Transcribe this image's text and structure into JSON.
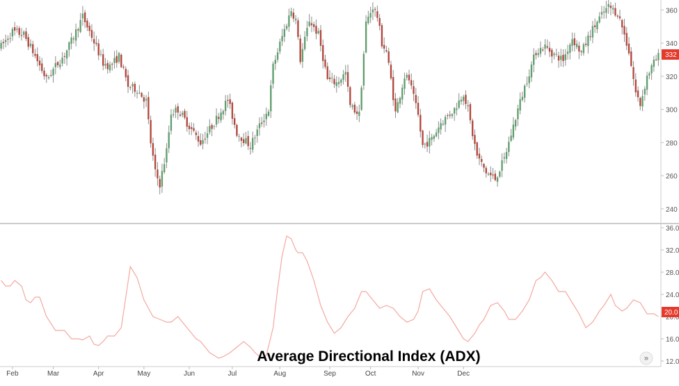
{
  "colors": {
    "up": "#5e9e6c",
    "down": "#b2453a",
    "adx": "#f4a8a0",
    "tag": "#e5392b",
    "panel_divider": "#bbbbbb"
  },
  "scroll_glyph": "»",
  "chart_data": [
    {
      "type": "candlestick",
      "title": "",
      "ylim": [
        232,
        366
      ],
      "yticks": [
        "240",
        "260",
        "280",
        "300",
        "320",
        "340",
        "360"
      ],
      "last_price_label": "332",
      "x_months": [
        "Feb",
        "Mar",
        "Apr",
        "May",
        "Jun",
        "Jul",
        "Aug",
        "Sep",
        "Oct",
        "Nov",
        "Dec"
      ],
      "close_path": [
        [
          0,
          338
        ],
        [
          5,
          347
        ],
        [
          10,
          345
        ],
        [
          14,
          335
        ],
        [
          20,
          318
        ],
        [
          24,
          326
        ],
        [
          28,
          333
        ],
        [
          31,
          341
        ],
        [
          36,
          356
        ],
        [
          40,
          344
        ],
        [
          45,
          328
        ],
        [
          48,
          326
        ],
        [
          52,
          332
        ],
        [
          56,
          314
        ],
        [
          60,
          312
        ],
        [
          64,
          305
        ],
        [
          66,
          280
        ],
        [
          68,
          262
        ],
        [
          70,
          255
        ],
        [
          73,
          275
        ],
        [
          75,
          298
        ],
        [
          78,
          300
        ],
        [
          82,
          292
        ],
        [
          88,
          280
        ],
        [
          94,
          292
        ],
        [
          100,
          306
        ],
        [
          104,
          286
        ],
        [
          110,
          278
        ],
        [
          114,
          290
        ],
        [
          118,
          300
        ],
        [
          120,
          326
        ],
        [
          124,
          344
        ],
        [
          128,
          360
        ],
        [
          130,
          354
        ],
        [
          132,
          330
        ],
        [
          136,
          354
        ],
        [
          140,
          345
        ],
        [
          144,
          318
        ],
        [
          148,
          316
        ],
        [
          152,
          322
        ],
        [
          154,
          302
        ],
        [
          158,
          297
        ],
        [
          161,
          352
        ],
        [
          164,
          362
        ],
        [
          166,
          356
        ],
        [
          168,
          340
        ],
        [
          170,
          335
        ],
        [
          172,
          318
        ],
        [
          174,
          298
        ],
        [
          178,
          320
        ],
        [
          180,
          318
        ],
        [
          184,
          296
        ],
        [
          186,
          278
        ],
        [
          190,
          282
        ],
        [
          194,
          292
        ],
        [
          200,
          300
        ],
        [
          204,
          310
        ],
        [
          206,
          300
        ],
        [
          208,
          285
        ],
        [
          210,
          272
        ],
        [
          214,
          262
        ],
        [
          218,
          258
        ],
        [
          222,
          270
        ],
        [
          225,
          285
        ],
        [
          228,
          300
        ],
        [
          232,
          318
        ],
        [
          236,
          335
        ],
        [
          240,
          338
        ],
        [
          244,
          333
        ],
        [
          248,
          330
        ],
        [
          252,
          343
        ],
        [
          256,
          334
        ],
        [
          260,
          346
        ],
        [
          264,
          355
        ],
        [
          268,
          362
        ],
        [
          272,
          358
        ],
        [
          274,
          350
        ],
        [
          277,
          335
        ],
        [
          280,
          310
        ],
        [
          282,
          303
        ],
        [
          285,
          320
        ],
        [
          288,
          328
        ],
        [
          290,
          332
        ]
      ]
    },
    {
      "type": "line",
      "title": "Average Directional Index (ADX)",
      "ylim": [
        11,
        36.5
      ],
      "yticks": [
        "12.0",
        "16.0",
        "20.0",
        "24.0",
        "28.0",
        "32.0",
        "36.0"
      ],
      "last_value_label": "20.0",
      "x_months": [
        "Feb",
        "Mar",
        "Apr",
        "May",
        "Jun",
        "Jul",
        "Aug",
        "Sep",
        "Oct",
        "Nov",
        "Dec"
      ],
      "series": [
        {
          "x": [
            0,
            2,
            4,
            6,
            9,
            11,
            13,
            15,
            17,
            20,
            24,
            28,
            31,
            34,
            36,
            39,
            41,
            43,
            45,
            47,
            50,
            53,
            55,
            57,
            60,
            63,
            67,
            70,
            73,
            75,
            78,
            82,
            86,
            88,
            90,
            92,
            96,
            98,
            101,
            104,
            107,
            110,
            112,
            115,
            117,
            120,
            122,
            124,
            126,
            128,
            130,
            131,
            133,
            135,
            138,
            141,
            144,
            147,
            150,
            153,
            156,
            159,
            161,
            164,
            167,
            170,
            173,
            176,
            179,
            182,
            184,
            186,
            189,
            192,
            195,
            198,
            201,
            204,
            206,
            209,
            211,
            213,
            216,
            219,
            222,
            224,
            227,
            230,
            233,
            236,
            238,
            240,
            243,
            246,
            249,
            252,
            255,
            258,
            261,
            264,
            266,
            269,
            271,
            274,
            276,
            279,
            282,
            285,
            288,
            290
          ],
          "values": [
            26.5,
            25.5,
            25.5,
            26.5,
            25.5,
            23,
            22.5,
            23.5,
            23.5,
            20,
            17.5,
            17.5,
            16,
            16,
            15.8,
            16.5,
            15,
            14.8,
            15.5,
            16.5,
            16.5,
            18,
            23.5,
            29,
            27,
            23,
            20,
            19.5,
            19,
            19,
            20,
            18,
            16,
            15.5,
            14.5,
            13.5,
            12.5,
            12.8,
            13.5,
            14.5,
            15.5,
            14.5,
            13.5,
            12.5,
            13,
            18,
            25,
            31,
            34.5,
            34,
            32,
            31.5,
            31.5,
            30,
            26.5,
            22,
            19,
            17,
            18,
            20,
            21.5,
            24.5,
            24.5,
            23,
            21.5,
            22,
            21.5,
            20,
            19,
            19.5,
            21,
            24.5,
            25,
            23,
            21.5,
            20,
            18,
            16,
            15.5,
            17,
            18.5,
            19.5,
            22,
            22.5,
            21,
            19.5,
            19.5,
            21,
            23,
            26.5,
            27,
            28,
            26.5,
            24.5,
            24.5,
            22.5,
            20.5,
            18,
            19,
            21,
            22,
            24,
            22,
            21,
            21.5,
            23,
            22.5,
            20.5,
            20.5,
            20
          ]
        }
      ]
    }
  ]
}
